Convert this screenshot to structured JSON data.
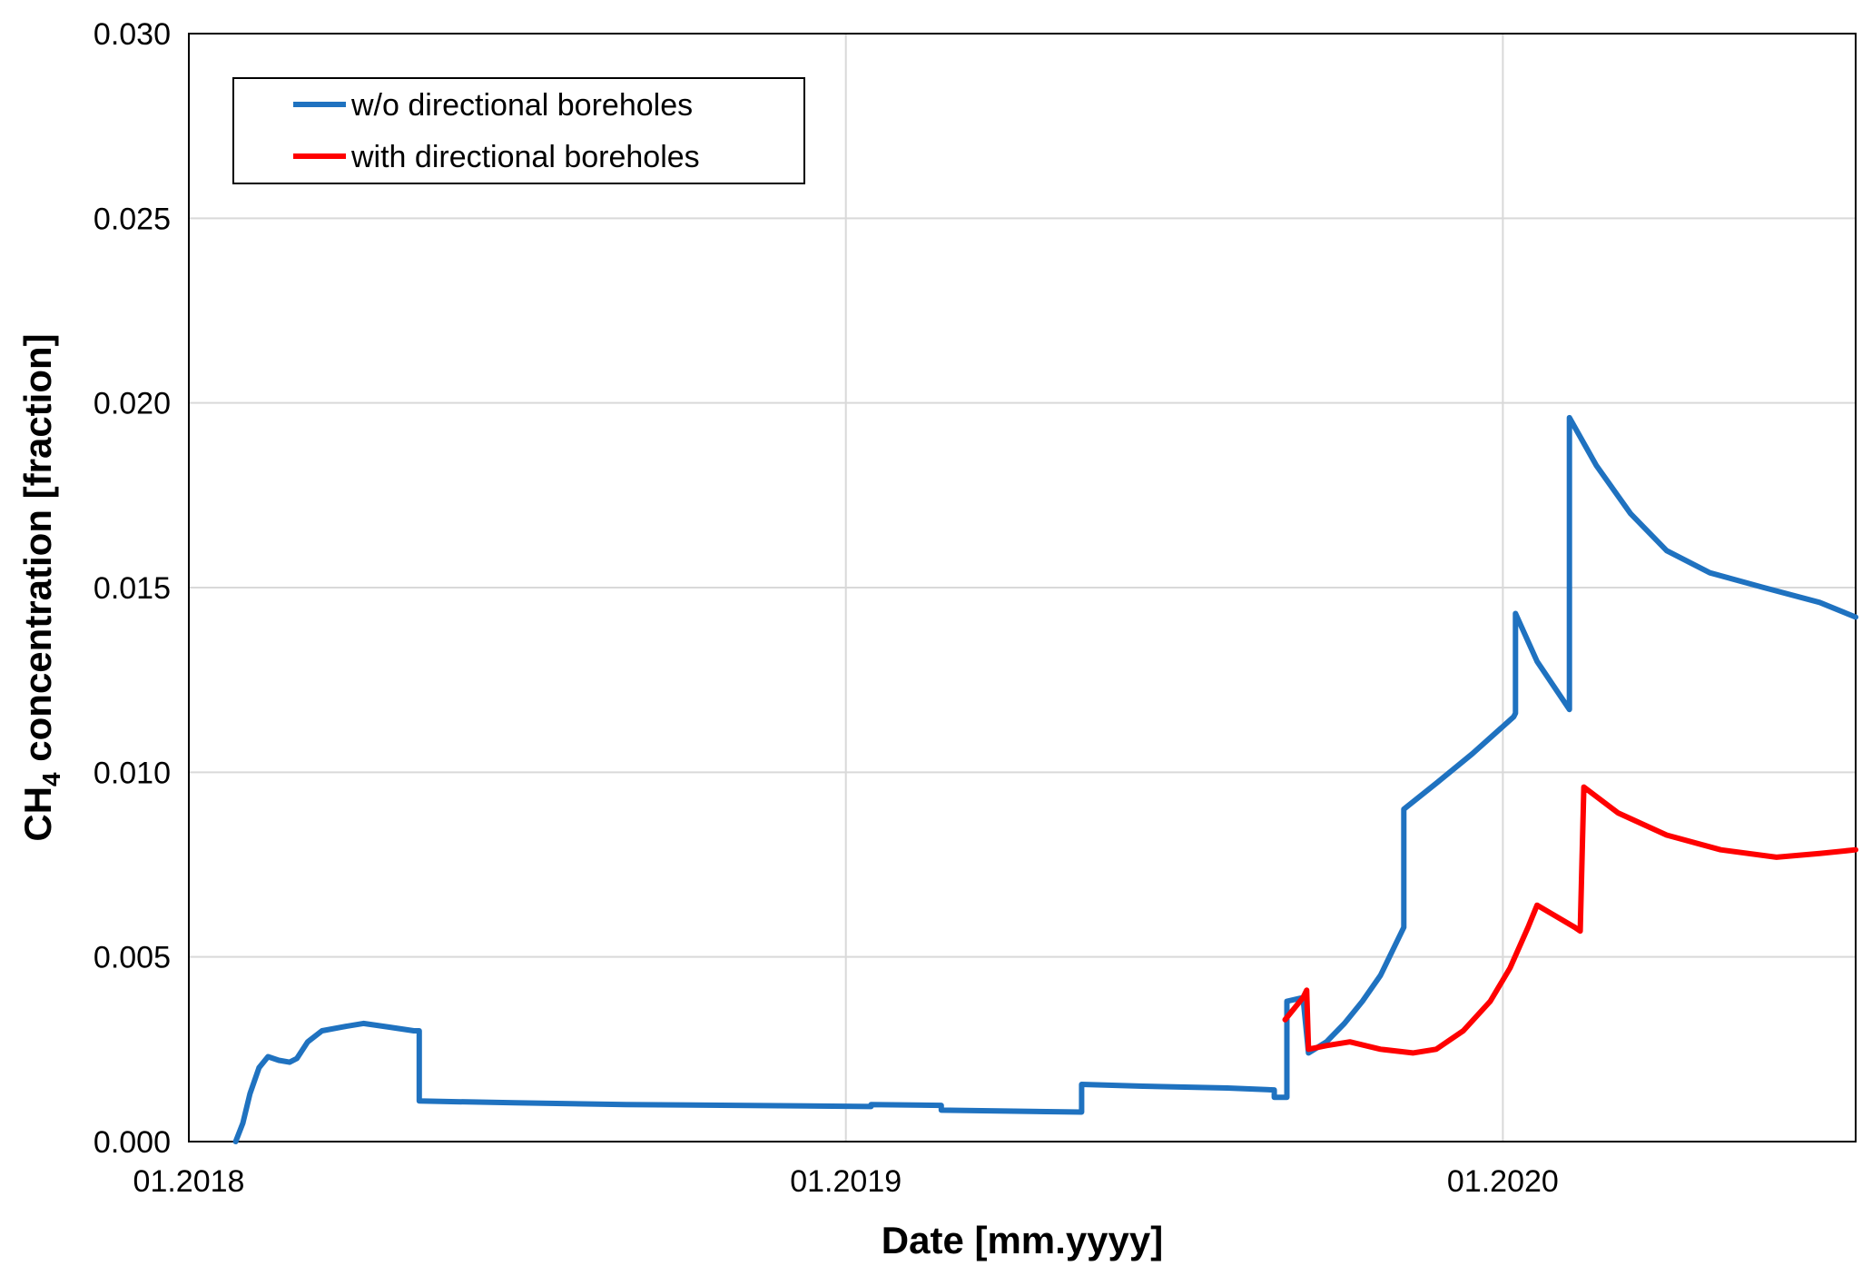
{
  "chart_data": {
    "type": "line",
    "xlabel": "Date [mm.yyyy]",
    "ylabel_main": "CH",
    "ylabel_sub": "4",
    "ylabel_rest": " concentration [fraction]",
    "xlim": [
      "2018-01-01",
      "2020-07-15"
    ],
    "ylim": [
      0,
      0.03
    ],
    "x_ticks": [
      {
        "date": "2018-01-01",
        "label": "01.2018"
      },
      {
        "date": "2019-01-01",
        "label": "01.2019"
      },
      {
        "date": "2020-01-01",
        "label": "01.2020"
      }
    ],
    "y_ticks": [
      {
        "value": 0,
        "label": "0.000"
      },
      {
        "value": 0.005,
        "label": "0.005"
      },
      {
        "value": 0.01,
        "label": "0.010"
      },
      {
        "value": 0.015,
        "label": "0.015"
      },
      {
        "value": 0.02,
        "label": "0.020"
      },
      {
        "value": 0.025,
        "label": "0.025"
      },
      {
        "value": 0.03,
        "label": "0.030"
      }
    ],
    "grid": true,
    "legend": "top-left",
    "series": [
      {
        "name": "w/o directional boreholes",
        "color": "#1F72C0",
        "points": [
          [
            "2018-01-27",
            0.0
          ],
          [
            "2018-01-31",
            0.0005
          ],
          [
            "2018-02-04",
            0.0013
          ],
          [
            "2018-02-09",
            0.002
          ],
          [
            "2018-02-14",
            0.0023
          ],
          [
            "2018-02-20",
            0.0022
          ],
          [
            "2018-02-26",
            0.00215
          ],
          [
            "2018-03-02",
            0.00225
          ],
          [
            "2018-03-08",
            0.0027
          ],
          [
            "2018-03-16",
            0.003
          ],
          [
            "2018-03-27",
            0.0031
          ],
          [
            "2018-04-08",
            0.0032
          ],
          [
            "2018-04-22",
            0.0031
          ],
          [
            "2018-05-06",
            0.003
          ],
          [
            "2018-05-09",
            0.003
          ],
          [
            "2018-05-09",
            0.0011
          ],
          [
            "2018-07-01",
            0.00105
          ],
          [
            "2018-09-01",
            0.001
          ],
          [
            "2018-11-01",
            0.00098
          ],
          [
            "2019-01-15",
            0.00095
          ],
          [
            "2019-01-15",
            0.001
          ],
          [
            "2019-02-23",
            0.00098
          ],
          [
            "2019-02-23",
            0.00085
          ],
          [
            "2019-05-12",
            0.0008
          ],
          [
            "2019-05-12",
            0.00155
          ],
          [
            "2019-06-15",
            0.0015
          ],
          [
            "2019-08-01",
            0.00145
          ],
          [
            "2019-08-27",
            0.0014
          ],
          [
            "2019-08-27",
            0.0012
          ],
          [
            "2019-09-03",
            0.0012
          ],
          [
            "2019-09-03",
            0.0038
          ],
          [
            "2019-09-12",
            0.0039
          ],
          [
            "2019-09-15",
            0.0024
          ],
          [
            "2019-09-25",
            0.0027
          ],
          [
            "2019-10-05",
            0.0032
          ],
          [
            "2019-10-15",
            0.0038
          ],
          [
            "2019-10-25",
            0.0045
          ],
          [
            "2019-11-07",
            0.0058
          ],
          [
            "2019-11-07",
            0.009
          ],
          [
            "2019-11-25",
            0.0097
          ],
          [
            "2019-12-15",
            0.0105
          ],
          [
            "2020-01-07",
            0.0115
          ],
          [
            "2020-01-08",
            0.0116
          ],
          [
            "2020-01-08",
            0.0143
          ],
          [
            "2020-01-20",
            0.013
          ],
          [
            "2020-02-07",
            0.0117
          ],
          [
            "2020-02-07",
            0.0196
          ],
          [
            "2020-02-22",
            0.0183
          ],
          [
            "2020-03-12",
            0.017
          ],
          [
            "2020-04-01",
            0.016
          ],
          [
            "2020-04-25",
            0.0154
          ],
          [
            "2020-05-25",
            0.015
          ],
          [
            "2020-06-25",
            0.0146
          ],
          [
            "2020-07-15",
            0.0142
          ]
        ]
      },
      {
        "name": "with directional boreholes",
        "color": "#FF0000",
        "points": [
          [
            "2019-09-02",
            0.0033
          ],
          [
            "2019-09-12",
            0.0039
          ],
          [
            "2019-09-14",
            0.0041
          ],
          [
            "2019-09-15",
            0.0025
          ],
          [
            "2019-09-25",
            0.0026
          ],
          [
            "2019-10-08",
            0.0027
          ],
          [
            "2019-10-25",
            0.0025
          ],
          [
            "2019-11-12",
            0.0024
          ],
          [
            "2019-11-25",
            0.0025
          ],
          [
            "2019-12-10",
            0.003
          ],
          [
            "2019-12-25",
            0.0038
          ],
          [
            "2020-01-05",
            0.0047
          ],
          [
            "2020-01-15",
            0.0058
          ],
          [
            "2020-01-20",
            0.0064
          ],
          [
            "2020-02-10",
            0.0058
          ],
          [
            "2020-02-13",
            0.0057
          ],
          [
            "2020-02-15",
            0.0096
          ],
          [
            "2020-03-05",
            0.0089
          ],
          [
            "2020-04-01",
            0.0083
          ],
          [
            "2020-05-01",
            0.0079
          ],
          [
            "2020-06-01",
            0.0077
          ],
          [
            "2020-06-25",
            0.0078
          ],
          [
            "2020-07-15",
            0.0079
          ]
        ]
      }
    ]
  }
}
